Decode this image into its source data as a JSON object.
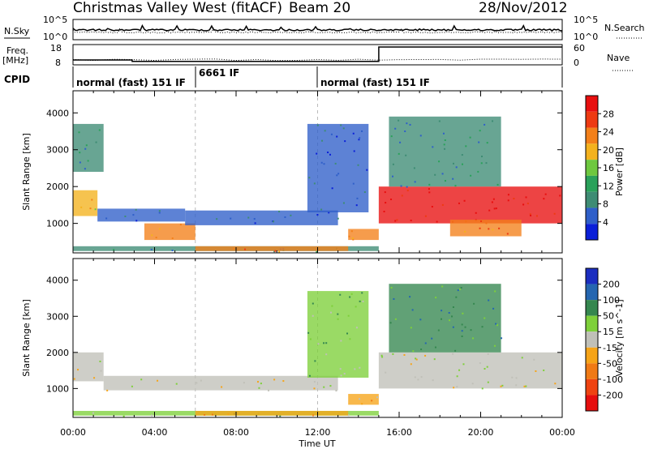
{
  "header": {
    "station": "Christmas Valley West (fitACF)",
    "beam": "Beam 20",
    "date": "28/Nov/2012"
  },
  "noise_panel": {
    "left_label": "N.Sky",
    "right_label": "N.Search",
    "left_ticks": [
      "10^5",
      "10^0"
    ],
    "right_ticks": [
      "10^5",
      "10^0"
    ]
  },
  "freq_panel": {
    "left_label_line1": "Freq.",
    "left_label_line2": "[MHz]",
    "right_label": "Nave",
    "left_ticks": [
      "18",
      "8"
    ],
    "right_ticks": [
      "60",
      "0"
    ],
    "freq_steps": [
      {
        "t0": 0.0,
        "t1": 2.9,
        "mhz": 10.4
      },
      {
        "t0": 2.9,
        "t1": 15.0,
        "mhz": 9.7
      },
      {
        "t0": 15.0,
        "t1": 24.0,
        "mhz": 16.8
      }
    ]
  },
  "cpid": {
    "label": "CPID",
    "segments": [
      {
        "start_h": 0,
        "text": "normal (fast) 151 IF"
      },
      {
        "start_h": 6,
        "text": "6661 IF"
      },
      {
        "start_h": 12,
        "text": "normal (fast) 151 IF"
      }
    ]
  },
  "colors": {
    "power_scale": [
      "#0a1fd8",
      "#2f5fc9",
      "#3e8c74",
      "#2aa15a",
      "#6ec83f",
      "#f4b21e",
      "#f3801a",
      "#ee3a12",
      "#e80f0f"
    ],
    "velocity_scale": [
      "#1b2ec0",
      "#2566b0",
      "#35874f",
      "#7ed03a",
      "#c0c0b8",
      "#f6a418",
      "#f07a15",
      "#ef4311",
      "#e60e0e"
    ]
  },
  "chart_data": [
    {
      "type": "heatmap",
      "title": "Power [dB]",
      "xlabel": "Time UT",
      "ylabel": "Slant Range [km]",
      "xlim": [
        0,
        24
      ],
      "ylim": [
        200,
        4600
      ],
      "x_ticks": [
        "00:00",
        "04:00",
        "08:00",
        "12:00",
        "16:00",
        "20:00",
        "00:00"
      ],
      "y_ticks": [
        1000,
        2000,
        3000,
        4000
      ],
      "colorbar_label": "Power [dB]",
      "colorbar_ticks": [
        "28",
        "24",
        "20",
        "16",
        "12",
        "8",
        "4"
      ],
      "regions": [
        {
          "t0": 0.0,
          "t1": 1.2,
          "r0": 1200,
          "r1": 1900,
          "level": 5
        },
        {
          "t0": 0.0,
          "t1": 1.5,
          "r0": 2400,
          "r1": 3700,
          "level": 2
        },
        {
          "t0": 1.2,
          "t1": 5.5,
          "r0": 1050,
          "r1": 1400,
          "level": 1
        },
        {
          "t0": 3.5,
          "t1": 6.0,
          "r0": 550,
          "r1": 1000,
          "level": 6
        },
        {
          "t0": 5.5,
          "t1": 13.0,
          "r0": 950,
          "r1": 1350,
          "level": 1
        },
        {
          "t0": 0.0,
          "t1": 15.0,
          "r0": 250,
          "r1": 380,
          "level": 2
        },
        {
          "t0": 6.0,
          "t1": 13.5,
          "r0": 250,
          "r1": 380,
          "level": 6
        },
        {
          "t0": 13.5,
          "t1": 15.0,
          "r0": 550,
          "r1": 850,
          "level": 6
        },
        {
          "t0": 15.0,
          "t1": 24.0,
          "r0": 1000,
          "r1": 2000,
          "level": 8
        },
        {
          "t0": 18.5,
          "t1": 22.0,
          "r0": 650,
          "r1": 1100,
          "level": 6
        },
        {
          "t0": 15.5,
          "t1": 21.0,
          "r0": 2000,
          "r1": 3900,
          "level": 2
        },
        {
          "t0": 11.5,
          "t1": 14.5,
          "r0": 1300,
          "r1": 3700,
          "level": 1
        }
      ]
    },
    {
      "type": "heatmap",
      "title": "Velocity [m s^-1]",
      "xlabel": "Time UT",
      "ylabel": "Slant Range [km]",
      "xlim": [
        0,
        24
      ],
      "ylim": [
        200,
        4600
      ],
      "x_ticks": [
        "00:00",
        "04:00",
        "08:00",
        "12:00",
        "16:00",
        "20:00",
        "00:00"
      ],
      "y_ticks": [
        1000,
        2000,
        3000,
        4000
      ],
      "colorbar_label": "Velocity [m s^-1]",
      "colorbar_ticks": [
        "200",
        "100",
        "50",
        "15",
        "-15",
        "-50",
        "-100",
        "-200"
      ],
      "regions": [
        {
          "t0": 0.0,
          "t1": 1.5,
          "r0": 1200,
          "r1": 2000,
          "level": 4
        },
        {
          "t0": 1.5,
          "t1": 13.0,
          "r0": 950,
          "r1": 1350,
          "level": 4
        },
        {
          "t0": 0.0,
          "t1": 15.0,
          "r0": 250,
          "r1": 380,
          "level": 3
        },
        {
          "t0": 6.0,
          "t1": 13.5,
          "r0": 250,
          "r1": 380,
          "level": 5
        },
        {
          "t0": 13.5,
          "t1": 15.0,
          "r0": 550,
          "r1": 850,
          "level": 5
        },
        {
          "t0": 11.5,
          "t1": 14.5,
          "r0": 1300,
          "r1": 3700,
          "level": 3
        },
        {
          "t0": 15.0,
          "t1": 24.0,
          "r0": 1000,
          "r1": 2000,
          "level": 4
        },
        {
          "t0": 15.5,
          "t1": 21.0,
          "r0": 2000,
          "r1": 3900,
          "level": 2
        }
      ]
    }
  ]
}
